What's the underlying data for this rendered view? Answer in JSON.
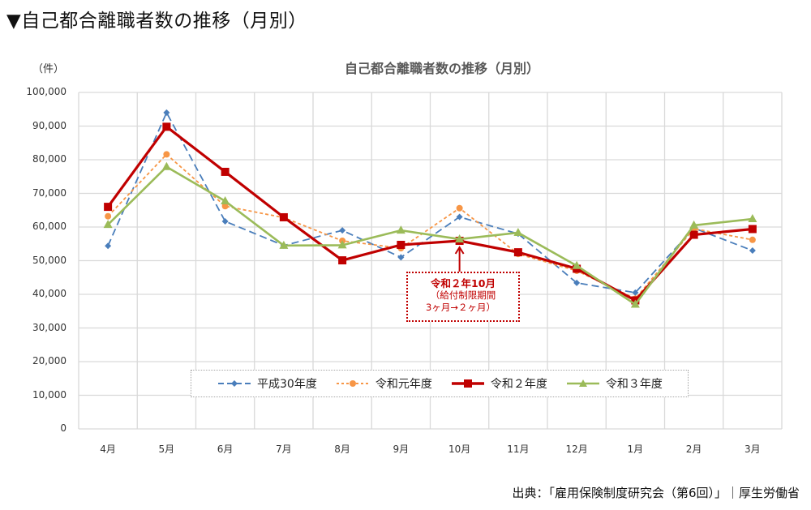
{
  "page": {
    "title": "▼自己都合離職者数の推移（月別）",
    "source": "出典：「雇用保険制度研究会（第6回）」｜厚生労働省"
  },
  "chart_data": {
    "type": "line",
    "title": "自己都合離職者数の推移（月別）",
    "xlabel": "",
    "ylabel": "（件）",
    "ylim": [
      0,
      100000
    ],
    "yticks": [
      0,
      10000,
      20000,
      30000,
      40000,
      50000,
      60000,
      70000,
      80000,
      90000,
      100000
    ],
    "ytick_labels": [
      "0",
      "10,000",
      "20,000",
      "30,000",
      "40,000",
      "50,000",
      "60,000",
      "70,000",
      "80,000",
      "90,000",
      "100,000"
    ],
    "grid": true,
    "legend_position": "bottom-inside",
    "categories": [
      "4月",
      "5月",
      "6月",
      "7月",
      "8月",
      "9月",
      "10月",
      "11月",
      "12月",
      "1月",
      "2月",
      "3月"
    ],
    "series": [
      {
        "name": "平成30年度",
        "color": "#4a7ebb",
        "style": "dashed",
        "marker": "diamond",
        "values": [
          54400,
          94000,
          61700,
          54500,
          59000,
          51000,
          63000,
          58000,
          43400,
          40500,
          59700,
          53000
        ]
      },
      {
        "name": "令和元年度",
        "color": "#f79646",
        "style": "dotted",
        "marker": "circle",
        "values": [
          63200,
          81600,
          66200,
          62800,
          55900,
          53700,
          65600,
          52000,
          47000,
          38700,
          59500,
          56200
        ]
      },
      {
        "name": "令和２年度",
        "color": "#c00000",
        "style": "solid-thick",
        "marker": "square",
        "values": [
          66000,
          89800,
          76400,
          62900,
          50100,
          54700,
          55900,
          52500,
          47600,
          38200,
          57700,
          59400
        ]
      },
      {
        "name": "令和３年度",
        "color": "#9bbb59",
        "style": "solid",
        "marker": "triangle",
        "values": [
          60700,
          77900,
          67700,
          54500,
          54600,
          59000,
          56400,
          58300,
          48500,
          37000,
          60500,
          62400
        ]
      }
    ],
    "annotations": [
      {
        "target": "10月",
        "series": "令和２年度",
        "color": "#c00000",
        "lines": [
          "令和２年10月",
          "（給付制限期間",
          "3ヶ月→２ヶ月）"
        ]
      }
    ]
  }
}
